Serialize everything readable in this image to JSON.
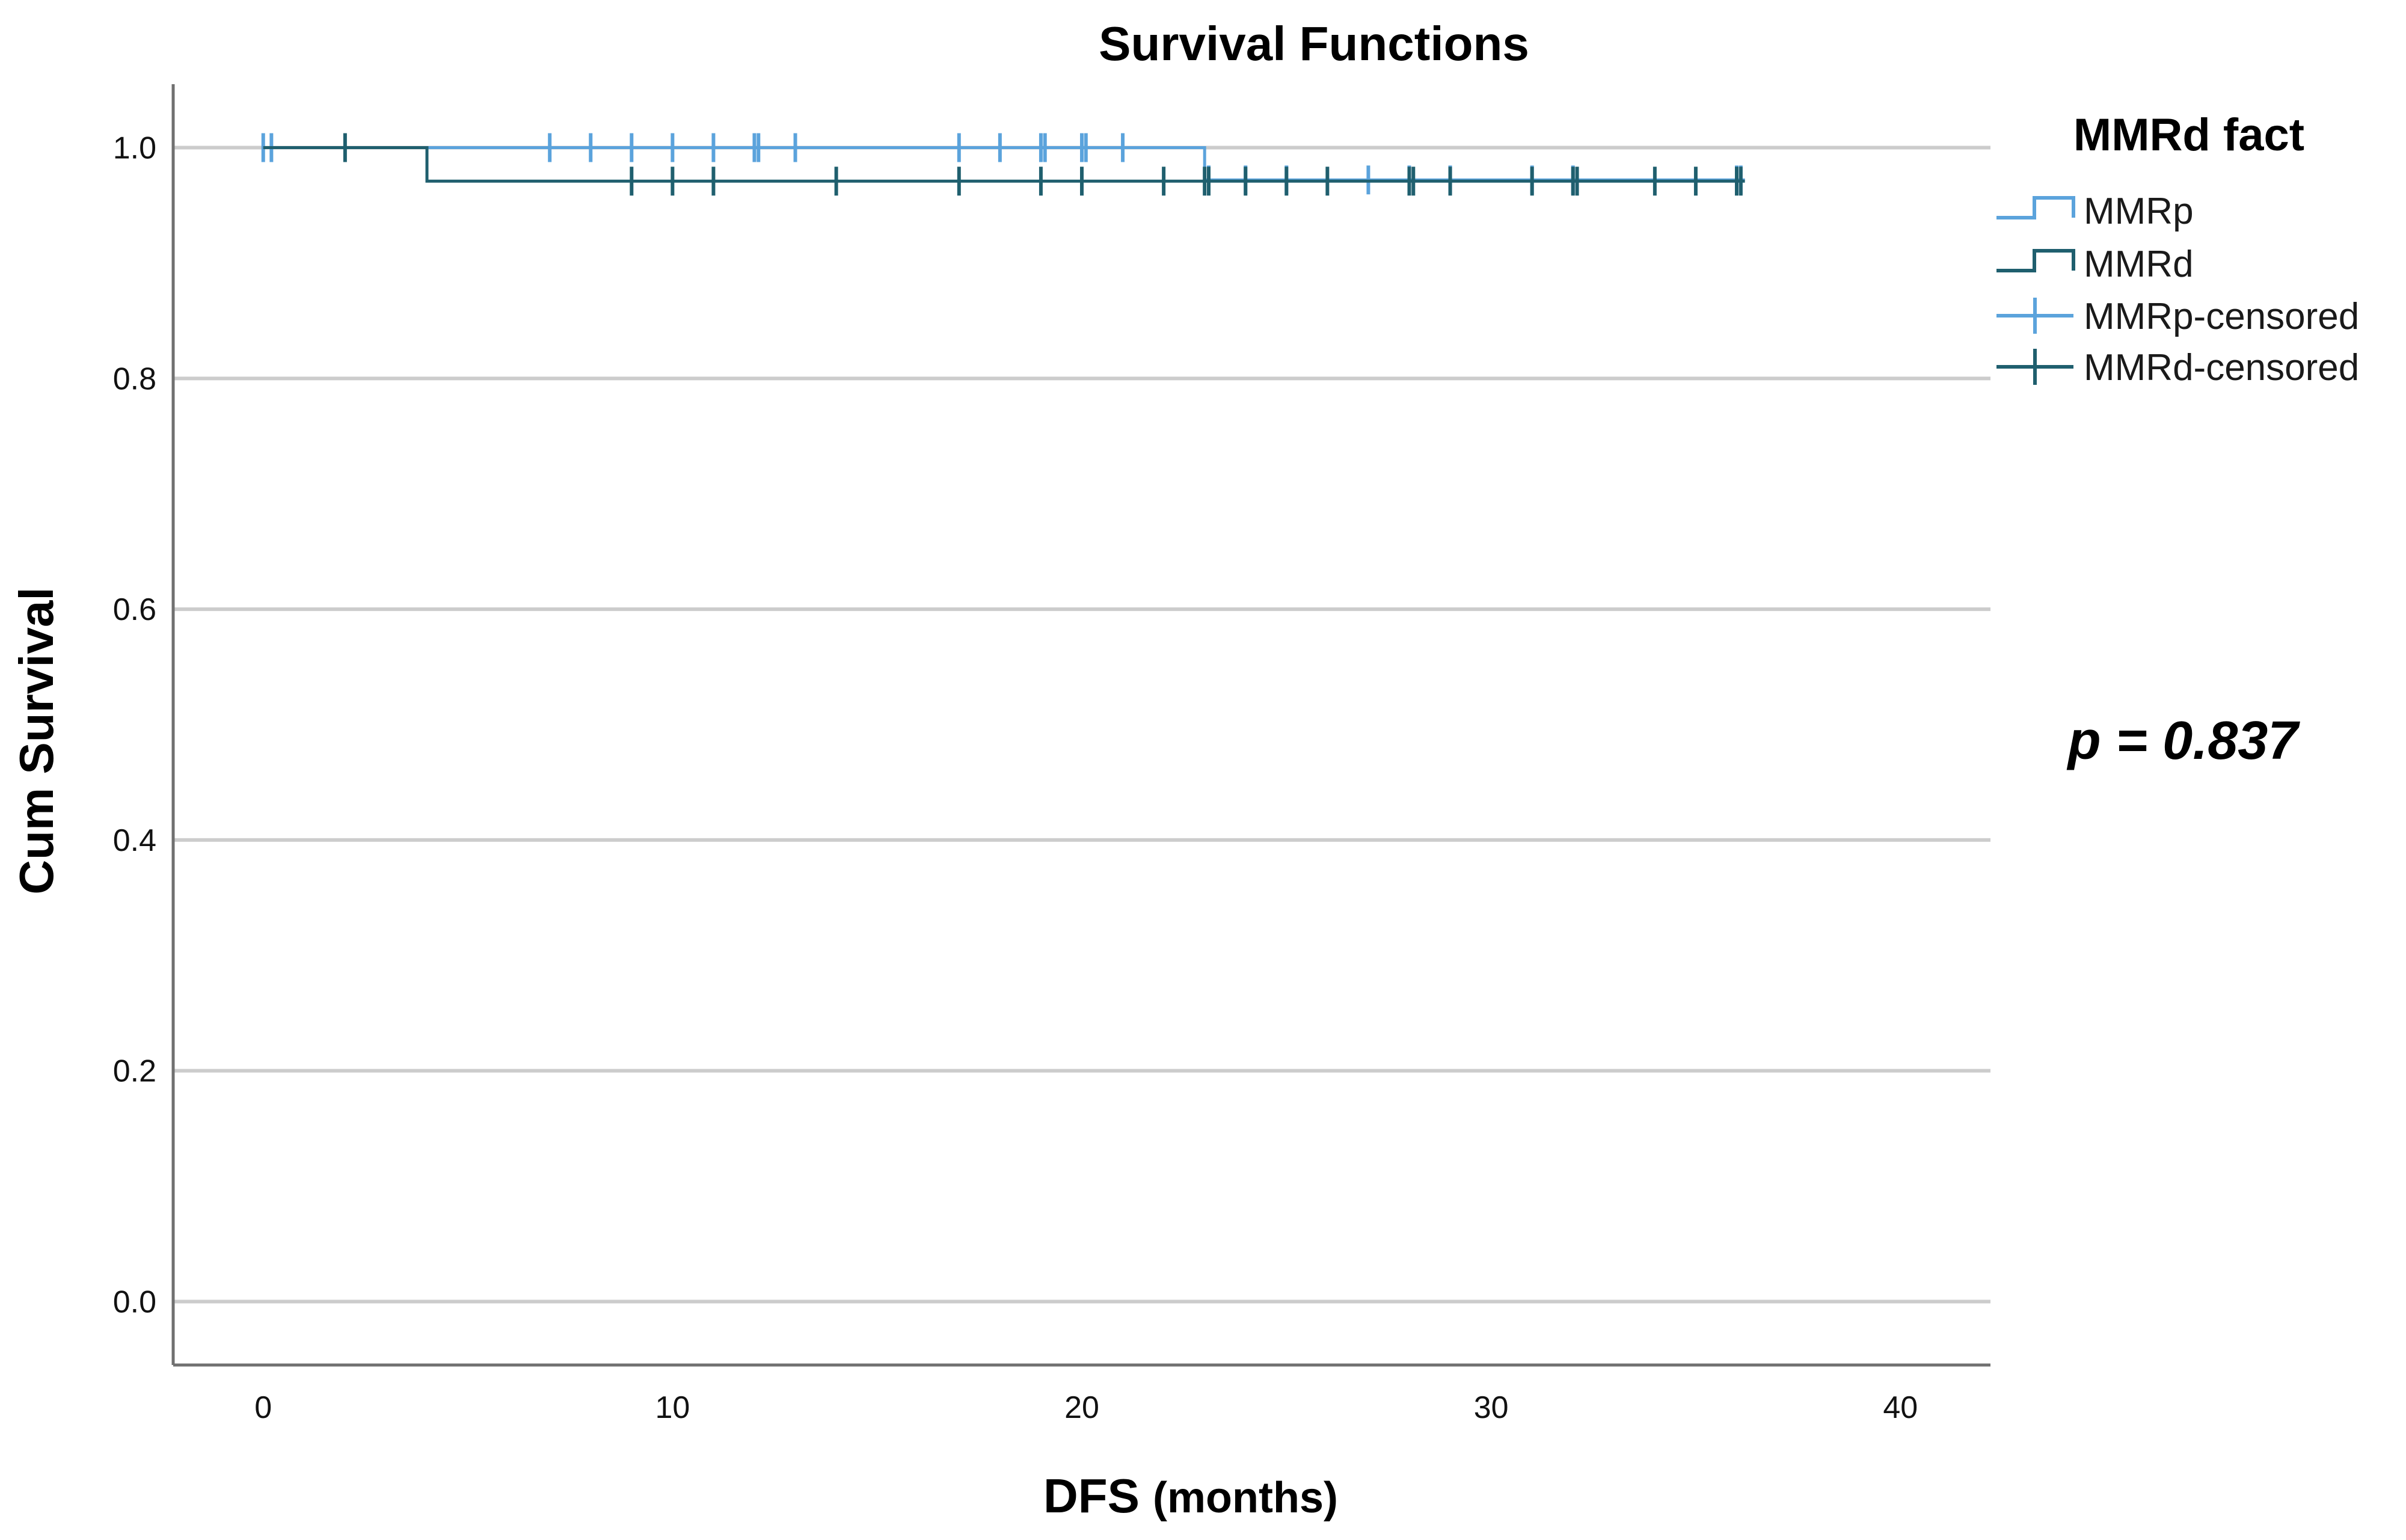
{
  "chart_data": {
    "type": "line",
    "title": "Survival Functions",
    "xlabel": "DFS",
    "xlabel_unit": "(months)",
    "ylabel": "Cum Survival",
    "xlim": [
      -2.2,
      42.2
    ],
    "ylim": [
      -0.055,
      1.055
    ],
    "x_ticks": [
      0,
      10,
      20,
      30,
      40
    ],
    "y_ticks": [
      0.0,
      0.2,
      0.4,
      0.6,
      0.8,
      1.0
    ],
    "x_tick_labels": [
      "0",
      "10",
      "20",
      "30",
      "40"
    ],
    "y_tick_labels": [
      "0.0",
      "0.2",
      "0.4",
      "0.6",
      "0.8",
      "1.0"
    ],
    "grid": "horizontal",
    "legend_title": "MMRd fact",
    "legend_position": "top-right",
    "legend_entries": [
      "MMRp",
      "MMRd",
      "MMRp-censored",
      "MMRd-censored"
    ],
    "annotation": "p = 0.837",
    "colors": {
      "MMRp": "#5ba3dc",
      "MMRd": "#1f5f6e",
      "grid": "#cccccc",
      "axis": "#707070"
    },
    "series": [
      {
        "name": "MMRp",
        "x": [
          0,
          23,
          23,
          36.2
        ],
        "y": [
          1.0,
          1.0,
          0.972,
          0.972
        ],
        "censored_x": [
          0,
          0.2,
          7,
          8,
          9,
          10,
          11,
          12,
          12.1,
          13,
          17,
          18,
          19,
          19.1,
          20,
          20.1,
          21,
          23.1,
          24,
          25,
          27,
          28,
          29,
          31,
          32,
          36,
          36.1
        ],
        "censored_y": [
          1.0,
          1.0,
          1.0,
          1.0,
          1.0,
          1.0,
          1.0,
          1.0,
          1.0,
          1.0,
          1.0,
          1.0,
          1.0,
          1.0,
          1.0,
          1.0,
          1.0,
          0.972,
          0.972,
          0.972,
          0.972,
          0.972,
          0.972,
          0.972,
          0.972,
          0.972,
          0.972
        ]
      },
      {
        "name": "MMRd",
        "x": [
          0,
          4,
          4,
          36.2
        ],
        "y": [
          1.0,
          1.0,
          0.971,
          0.971
        ],
        "censored_x": [
          2,
          9,
          10,
          11,
          14,
          17,
          19,
          20,
          22,
          23,
          23.1,
          24,
          25,
          26,
          28,
          28.1,
          29,
          31,
          32,
          32.1,
          34,
          35,
          36,
          36.1
        ],
        "censored_y": [
          1.0,
          0.971,
          0.971,
          0.971,
          0.971,
          0.971,
          0.971,
          0.971,
          0.971,
          0.971,
          0.971,
          0.971,
          0.971,
          0.971,
          0.971,
          0.971,
          0.971,
          0.971,
          0.971,
          0.971,
          0.971,
          0.971,
          0.971,
          0.971
        ]
      }
    ]
  }
}
